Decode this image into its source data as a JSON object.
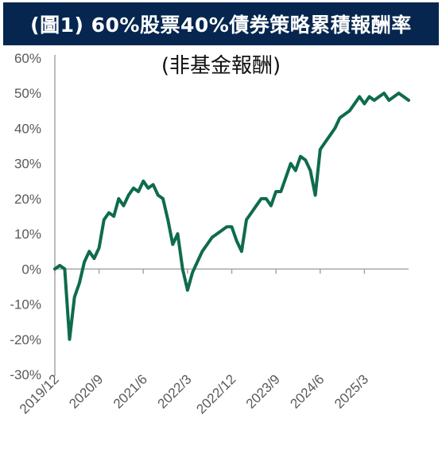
{
  "header": {
    "title": "(圖1) 60%股票40%債券策略累積報酬率",
    "subtitle": "(非基金報酬)"
  },
  "colors": {
    "title_bg": "#06264f",
    "line": "#0e6b4e",
    "axis": "#a6a6a6",
    "text": "#595959"
  },
  "chart_data": {
    "type": "line",
    "title": "(圖1) 60%股票40%債券策略累積報酬率",
    "subtitle": "(非基金報酬)",
    "xlabel": "",
    "ylabel": "",
    "ylim": [
      -30,
      60
    ],
    "y_ticks": [
      "60%",
      "50%",
      "40%",
      "30%",
      "20%",
      "10%",
      "0%",
      "-10%",
      "-20%",
      "-30%"
    ],
    "x_ticks": [
      "2019/12",
      "2020/9",
      "2021/6",
      "2022/3",
      "2022/12",
      "2023/9",
      "2024/6",
      "2025/3"
    ],
    "grid": false,
    "series": [
      {
        "x": [
          "2019/12",
          "2020/1",
          "2020/2",
          "2020/3",
          "2020/4",
          "2020/5",
          "2020/6",
          "2020/7",
          "2020/8",
          "2020/9",
          "2020/10",
          "2020/11",
          "2020/12",
          "2021/1",
          "2021/2",
          "2021/3",
          "2021/4",
          "2021/5",
          "2021/6",
          "2021/7",
          "2021/8",
          "2021/9",
          "2021/10",
          "2021/11",
          "2021/12",
          "2022/1",
          "2022/2",
          "2022/3",
          "2022/4",
          "2022/5",
          "2022/6",
          "2022/7",
          "2022/8",
          "2022/9",
          "2022/10",
          "2022/11",
          "2022/12",
          "2023/1",
          "2023/2",
          "2023/3",
          "2023/4",
          "2023/5",
          "2023/6",
          "2023/7",
          "2023/8",
          "2023/9",
          "2023/10",
          "2023/11",
          "2023/12",
          "2024/1",
          "2024/2",
          "2024/3",
          "2024/4",
          "2024/5",
          "2024/6",
          "2024/7",
          "2024/8",
          "2024/9",
          "2024/10",
          "2024/11",
          "2024/12",
          "2025/1",
          "2025/2",
          "2025/3",
          "2025/4",
          "2025/5",
          "2025/6",
          "2025/7",
          "2025/8",
          "2025/9",
          "2025/10",
          "2025/11",
          "2025/12"
        ],
        "values": [
          0,
          1,
          0,
          -20,
          -8,
          -4,
          2,
          5,
          3,
          6,
          14,
          16,
          15,
          20,
          18,
          21,
          23,
          22,
          25,
          23,
          24,
          21,
          20,
          14,
          7,
          10,
          0,
          -6,
          -1,
          2,
          5,
          7,
          9,
          10,
          11,
          12,
          12,
          8,
          5,
          14,
          16,
          18,
          20,
          20,
          18,
          22,
          22,
          26,
          30,
          28,
          32,
          31,
          28,
          21,
          34,
          36,
          38,
          40,
          43,
          44,
          45,
          47,
          49,
          47,
          49,
          48,
          49,
          50,
          48,
          49,
          50,
          49,
          48
        ]
      }
    ]
  }
}
